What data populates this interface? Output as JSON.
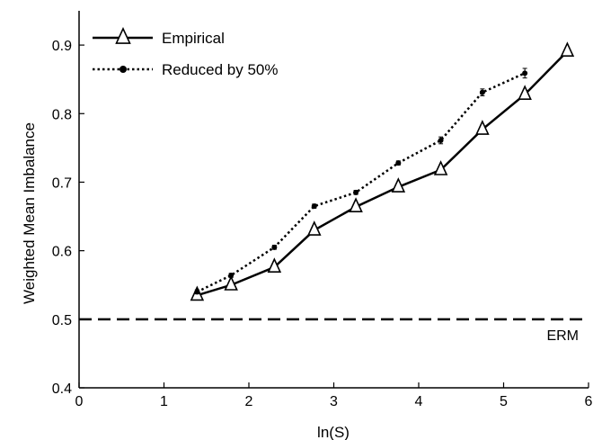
{
  "chart_data": {
    "type": "line",
    "xlabel": "ln(S)",
    "ylabel": "Weighted Mean Imbalance",
    "xlim": [
      0,
      6
    ],
    "ylim": [
      0.4,
      0.95
    ],
    "xticks": [
      0,
      1,
      2,
      3,
      4,
      5,
      6
    ],
    "yticks": [
      0.4,
      0.5,
      0.6,
      0.7,
      0.8,
      0.9
    ],
    "xtick_labels": [
      "0",
      "1",
      "2",
      "3",
      "4",
      "5",
      "6"
    ],
    "ytick_labels": [
      "0.4",
      "0.5",
      "0.6",
      "0.7",
      "0.8",
      "0.9"
    ],
    "grid": false,
    "legend_position": "top-left",
    "series": [
      {
        "name": "Empirical",
        "style": "solid",
        "marker": "open-triangle",
        "x": [
          1.39,
          1.79,
          2.3,
          2.77,
          3.26,
          3.76,
          4.26,
          4.75,
          5.25,
          5.75
        ],
        "y": [
          0.535,
          0.55,
          0.576,
          0.63,
          0.664,
          0.693,
          0.718,
          0.777,
          0.828,
          0.891
        ]
      },
      {
        "name": "Reduced by 50%",
        "style": "dotted",
        "marker": "filled-circle",
        "x": [
          1.39,
          1.79,
          2.3,
          2.77,
          3.26,
          3.76,
          4.26,
          4.75,
          5.25
        ],
        "y": [
          0.54,
          0.564,
          0.605,
          0.665,
          0.685,
          0.728,
          0.761,
          0.831,
          0.859
        ],
        "error": [
          0.003,
          0.003,
          0.003,
          0.003,
          0.003,
          0.003,
          0.005,
          0.005,
          0.007
        ]
      }
    ],
    "reference_line": {
      "label": "ERM",
      "y": 0.5,
      "style": "dashed"
    }
  }
}
